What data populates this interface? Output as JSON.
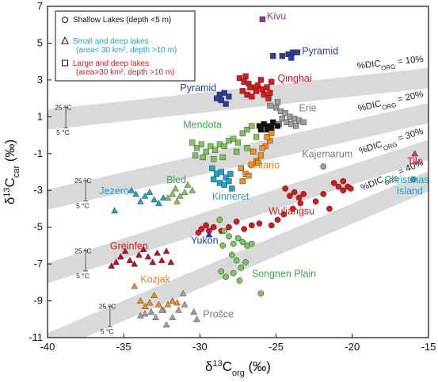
{
  "chart_data": {
    "type": "scatter",
    "xlabel": "δ13Corg (‰)",
    "ylabel": "δ13Ccar (‰)",
    "xlim": [
      -40,
      -15
    ],
    "ylim": [
      -11,
      7
    ],
    "x_ticks": [
      "-40",
      "-35",
      "-30",
      "-25",
      "-20",
      "-15"
    ],
    "y_ticks": [
      "7",
      "5",
      "3",
      "1",
      "-1",
      "-3",
      "-5",
      "-7",
      "-9",
      "-11"
    ],
    "legend": [
      {
        "shape": "circle",
        "text": "Shallow Lakes (depth <5 m)",
        "color": "#111111"
      },
      {
        "shape": "triangle",
        "text": "Small and deep lakes",
        "text2": "(area< 30 km², depth >10 m)",
        "color": "#1fa3c8"
      },
      {
        "shape": "square",
        "text": "Large and deep lakes",
        "text2": "(area>30 km², depth >10 m)",
        "color": "#d7191c"
      }
    ],
    "bands": [
      {
        "label": "%DIC",
        "sub": "ORG",
        "tail": " = 10%",
        "y_at_x_min": 0.85,
        "y_at_x_max": 3.1
      },
      {
        "label": "%DIC",
        "sub": "ORG",
        "tail": " = 20%",
        "y_at_x_min": -3.5,
        "y_at_x_max": 1.2
      },
      {
        "label": "%DIC",
        "sub": "ORG",
        "tail": " = 30%",
        "y_at_x_min": -7.5,
        "y_at_x_max": -0.8
      },
      {
        "label": "%DIC",
        "sub": "ORG",
        "tail": " = 40%",
        "y_at_x_min": -11.3,
        "y_at_x_max": -2.5
      }
    ],
    "temp_labels": {
      "warm": "25 °C",
      "cold": "5 °C"
    },
    "series": [
      {
        "name": "Kivu",
        "shape": "square",
        "color": "#8e3c97",
        "points": [
          [
            -25.9,
            6.3
          ]
        ]
      },
      {
        "name": "Pyramid",
        "shape": "square",
        "color": "#2a3d9c",
        "points": [
          [
            -24.6,
            4.3
          ],
          [
            -24.2,
            4.4
          ],
          [
            -23.9,
            4.5
          ],
          [
            -23.6,
            4.5
          ],
          [
            -24.0,
            4.2
          ],
          [
            -25.2,
            4.3
          ]
        ]
      },
      {
        "name": "Qinghai",
        "shape": "square",
        "color": "#d7191c",
        "points": [
          [
            -27.4,
            3.1
          ],
          [
            -27.1,
            2.9
          ],
          [
            -26.8,
            2.8
          ],
          [
            -26.5,
            2.6
          ],
          [
            -26.2,
            2.7
          ],
          [
            -25.9,
            2.5
          ],
          [
            -25.6,
            2.6
          ],
          [
            -25.3,
            2.9
          ],
          [
            -27.2,
            2.4
          ],
          [
            -26.9,
            2.2
          ],
          [
            -26.6,
            2.1
          ],
          [
            -26.3,
            2.4
          ],
          [
            -25.8,
            2.2
          ],
          [
            -25.5,
            2.0
          ],
          [
            -27.0,
            3.2
          ],
          [
            -26.0,
            3.0
          ],
          [
            -25.4,
            2.3
          ],
          [
            -26.7,
            2.6
          ]
        ]
      },
      {
        "name": "Pyramid",
        "shape": "square",
        "color": "#2a3d9c",
        "points": [
          [
            -28.7,
            2.2
          ],
          [
            -28.4,
            2.3
          ],
          [
            -28.1,
            2.1
          ],
          [
            -28.6,
            1.9
          ],
          [
            -28.3,
            1.7
          ],
          [
            -28.9,
            2.0
          ]
        ]
      },
      {
        "name": "Erie",
        "shape": "square",
        "color": "#9e9e9e",
        "points": [
          [
            -25.4,
            1.6
          ],
          [
            -25.0,
            1.5
          ],
          [
            -24.7,
            1.3
          ],
          [
            -24.4,
            1.2
          ],
          [
            -24.1,
            1.0
          ],
          [
            -23.8,
            0.9
          ],
          [
            -23.5,
            0.8
          ],
          [
            -23.2,
            0.7
          ],
          [
            -24.9,
            1.8
          ],
          [
            -24.6,
            0.9
          ],
          [
            -24.3,
            0.7
          ],
          [
            -24.0,
            0.6
          ],
          [
            -23.7,
            0.5
          ],
          [
            -24.8,
            0.6
          ]
        ]
      },
      {
        "name": "",
        "shape": "square",
        "color": "#111111",
        "points": [
          [
            -26.1,
            0.5
          ],
          [
            -25.8,
            0.6
          ],
          [
            -25.5,
            0.5
          ],
          [
            -25.2,
            0.7
          ],
          [
            -24.9,
            0.5
          ],
          [
            -26.0,
            0.3
          ],
          [
            -25.6,
            0.3
          ],
          [
            -25.3,
            0.4
          ]
        ]
      },
      {
        "name": "Mendota",
        "shape": "square",
        "color": "#7fc45a",
        "points": [
          [
            -30.5,
            -0.4
          ],
          [
            -30.2,
            -0.7
          ],
          [
            -29.9,
            -0.5
          ],
          [
            -29.6,
            -0.9
          ],
          [
            -29.3,
            -0.6
          ],
          [
            -29.0,
            -0.8
          ],
          [
            -28.7,
            -0.5
          ],
          [
            -28.4,
            -0.6
          ],
          [
            -28.1,
            -0.3
          ],
          [
            -27.8,
            -0.2
          ],
          [
            -27.5,
            -0.4
          ],
          [
            -27.2,
            0.1
          ],
          [
            -26.9,
            0.3
          ],
          [
            -26.6,
            0.5
          ],
          [
            -26.3,
            -0.1
          ],
          [
            -30.3,
            -1.1
          ],
          [
            -29.8,
            -1.2
          ],
          [
            -29.1,
            -1.3
          ],
          [
            -28.5,
            -1.2
          ],
          [
            -27.6,
            -0.9
          ],
          [
            -26.9,
            -0.7
          ]
        ]
      },
      {
        "name": "Ontario",
        "shape": "square",
        "color": "#f28e1c",
        "points": [
          [
            -27.3,
            -1.8
          ],
          [
            -27.0,
            -2.1
          ],
          [
            -26.6,
            -1.6
          ],
          [
            -26.3,
            -1.4
          ],
          [
            -26.0,
            -1.1
          ],
          [
            -25.7,
            -0.6
          ],
          [
            -25.4,
            -0.3
          ],
          [
            -25.9,
            -0.7
          ],
          [
            -26.5,
            -0.9
          ],
          [
            -27.2,
            -2.5
          ],
          [
            -26.8,
            -2.2
          ],
          [
            -25.6,
            -0.1
          ],
          [
            -25.3,
            0.1
          ],
          [
            -26.2,
            -1.5
          ]
        ]
      },
      {
        "name": "Kinneret",
        "shape": "square",
        "color": "#1fa3c8",
        "points": [
          [
            -29.2,
            -1.8
          ],
          [
            -28.9,
            -2.1
          ],
          [
            -28.6,
            -2.0
          ],
          [
            -28.3,
            -2.3
          ],
          [
            -28.0,
            -2.1
          ],
          [
            -29.1,
            -2.4
          ],
          [
            -28.7,
            -2.6
          ],
          [
            -28.4,
            -2.7
          ],
          [
            -28.1,
            -2.5
          ],
          [
            -27.9,
            -2.9
          ]
        ]
      },
      {
        "name": "Jezero",
        "shape": "triangle",
        "color": "#1fa3c8",
        "points": [
          [
            -35.6,
            -4.1
          ],
          [
            -34.5,
            -3.0
          ],
          [
            -34.2,
            -3.2
          ],
          [
            -33.9,
            -3.6
          ],
          [
            -33.6,
            -3.3
          ],
          [
            -33.3,
            -3.1
          ],
          [
            -33.0,
            -3.5
          ],
          [
            -32.7,
            -3.7
          ],
          [
            -32.4,
            -3.4
          ]
        ]
      },
      {
        "name": "Bled",
        "shape": "triangle",
        "color": "#7fc45a",
        "points": [
          [
            -32.1,
            -3.4
          ],
          [
            -31.8,
            -3.2
          ],
          [
            -31.6,
            -2.9
          ],
          [
            -31.3,
            -3.3
          ],
          [
            -31.0,
            -3.1
          ],
          [
            -30.8,
            -2.7
          ],
          [
            -30.5,
            -3.0
          ],
          [
            -31.5,
            -3.6
          ]
        ]
      },
      {
        "name": "Kajemarum",
        "shape": "circle",
        "color": "#9e9e9e",
        "points": [
          [
            -21.9,
            -1.7
          ]
        ]
      },
      {
        "name": "Wuliangsu",
        "shape": "circle",
        "color": "#d7191c",
        "points": [
          [
            -24.4,
            -2.9
          ],
          [
            -24.1,
            -3.3
          ],
          [
            -23.8,
            -3.1
          ],
          [
            -23.5,
            -3.4
          ],
          [
            -23.2,
            -3.2
          ],
          [
            -23.4,
            -3.7
          ],
          [
            -23.9,
            -4.0
          ],
          [
            -24.5,
            -4.3
          ],
          [
            -24.9,
            -4.6
          ],
          [
            -25.3,
            -4.9
          ],
          [
            -22.4,
            -3.6
          ],
          [
            -21.9,
            -3.2
          ],
          [
            -21.5,
            -4.0
          ],
          [
            -21.2,
            -2.6
          ],
          [
            -20.9,
            -2.8
          ],
          [
            -20.6,
            -2.5
          ],
          [
            -20.3,
            -2.8
          ],
          [
            -20.6,
            -3.0
          ],
          [
            -20.1,
            -2.9
          ],
          [
            -26.1,
            -4.8
          ],
          [
            -26.6,
            -4.9
          ],
          [
            -27.1,
            -5.1
          ],
          [
            -28.1,
            -5.0
          ],
          [
            -28.6,
            -5.2
          ],
          [
            -29.1,
            -5.0
          ],
          [
            -29.6,
            -4.9
          ],
          [
            -30.1,
            -5.3
          ],
          [
            -29.9,
            -5.1
          ],
          [
            -29.4,
            -5.2
          ],
          [
            -27.6,
            -4.7
          ]
        ]
      },
      {
        "name": "Tilo",
        "shape": "triangle",
        "color": "#d23c7a",
        "points": [
          [
            -15.9,
            -1.0
          ]
        ]
      },
      {
        "name": "Christmas Island",
        "shape": "circle",
        "color": "#1fa3c8",
        "points": [
          [
            -16.0,
            -2.4
          ]
        ]
      },
      {
        "name": "Yukon",
        "shape": "triangle",
        "color": "#2a3d9c",
        "points": [
          [
            -29.4,
            -5.4
          ]
        ]
      },
      {
        "name": "Songnen Plain",
        "shape": "circle",
        "color": "#7fc45a",
        "points": [
          [
            -28.7,
            -4.6
          ],
          [
            -28.4,
            -5.2
          ],
          [
            -28.1,
            -5.5
          ],
          [
            -27.8,
            -5.9
          ],
          [
            -27.5,
            -5.6
          ],
          [
            -27.2,
            -5.8
          ],
          [
            -26.9,
            -6.0
          ],
          [
            -26.6,
            -5.9
          ],
          [
            -28.5,
            -6.0
          ],
          [
            -27.9,
            -6.5
          ],
          [
            -27.6,
            -6.8
          ],
          [
            -27.3,
            -7.2
          ],
          [
            -27.0,
            -6.9
          ],
          [
            -28.6,
            -7.4
          ],
          [
            -28.3,
            -7.7
          ],
          [
            -27.8,
            -7.5
          ],
          [
            -27.4,
            -7.9
          ],
          [
            -26.0,
            -8.6
          ]
        ]
      },
      {
        "name": "Greinfen",
        "shape": "triangle",
        "color": "#c1121b",
        "points": [
          [
            -35.8,
            -7.1
          ],
          [
            -35.5,
            -6.9
          ],
          [
            -35.2,
            -6.6
          ],
          [
            -34.9,
            -6.3
          ],
          [
            -34.6,
            -6.8
          ],
          [
            -34.3,
            -7.0
          ],
          [
            -34.0,
            -6.5
          ],
          [
            -33.7,
            -6.2
          ],
          [
            -33.4,
            -6.6
          ],
          [
            -33.1,
            -6.9
          ],
          [
            -32.8,
            -6.4
          ],
          [
            -32.5,
            -6.8
          ],
          [
            -32.2,
            -6.3
          ],
          [
            -31.9,
            -6.9
          ]
        ]
      },
      {
        "name": "Kozjak",
        "shape": "triangle",
        "color": "#f28e1c",
        "points": [
          [
            -34.3,
            -8.2
          ],
          [
            -33.9,
            -9.0
          ],
          [
            -33.6,
            -9.3
          ],
          [
            -33.3,
            -9.1
          ],
          [
            -33.0,
            -8.7
          ],
          [
            -32.7,
            -9.2
          ],
          [
            -32.4,
            -9.5
          ],
          [
            -32.1,
            -9.2
          ],
          [
            -31.8,
            -9.0
          ],
          [
            -31.5,
            -9.1
          ]
        ]
      },
      {
        "name": "Prošce",
        "shape": "triangle",
        "color": "#9e9e9e",
        "points": [
          [
            -33.9,
            -9.8
          ],
          [
            -33.6,
            -9.7
          ],
          [
            -33.2,
            -9.6
          ],
          [
            -32.9,
            -9.9
          ],
          [
            -32.5,
            -9.5
          ],
          [
            -32.2,
            -10.3
          ],
          [
            -31.8,
            -9.9
          ],
          [
            -31.4,
            -9.5
          ],
          [
            -31.1,
            -8.6
          ],
          [
            -31.0,
            -9.2
          ],
          [
            -30.4,
            -9.6
          ],
          [
            -30.2,
            -10.0
          ]
        ]
      }
    ],
    "labels": [
      {
        "text": "Kivu",
        "color": "#8e3c97",
        "x": -25.6,
        "y": 6.3
      },
      {
        "text": "Pyramid",
        "color": "#2a3d9c",
        "x": -23.3,
        "y": 4.4
      },
      {
        "text": "Qinghai",
        "color": "#d7191c",
        "x": -24.9,
        "y": 2.9
      },
      {
        "text": "Pyramid",
        "color": "#2a3d9c",
        "x": -31.3,
        "y": 2.4
      },
      {
        "text": "Erie",
        "color": "#7b7b7b",
        "x": -23.5,
        "y": 1.3
      },
      {
        "text": "Mendota",
        "color": "#3aa64a",
        "x": -31.1,
        "y": 0.4
      },
      {
        "text": "Ontario",
        "color": "#e67e1a",
        "x": -26.9,
        "y": -1.8
      },
      {
        "text": "Kajemarum",
        "color": "#7b7b7b",
        "x": -23.3,
        "y": -1.2
      },
      {
        "text": "Tilo",
        "color": "#d7191c",
        "x": -16.4,
        "y": -1.6
      },
      {
        "text": "Bled",
        "color": "#3aa64a",
        "x": -32.2,
        "y": -2.6
      },
      {
        "text": "Christmas",
        "color": "#1fa3c8",
        "x": -17.9,
        "y": -2.6
      },
      {
        "text": "Island",
        "color": "#1fa3c8",
        "x": -17.1,
        "y": -3.2
      },
      {
        "text": "Jezero",
        "color": "#1fa3c8",
        "x": -36.6,
        "y": -3.2
      },
      {
        "text": "Kinneret",
        "color": "#1fa3c8",
        "x": -29.2,
        "y": -3.5
      },
      {
        "text": "Wuliangsu",
        "color": "#d7191c",
        "x": -25.5,
        "y": -4.3
      },
      {
        "text": "Yukon",
        "color": "#2a3d9c",
        "x": -30.6,
        "y": -5.9
      },
      {
        "text": "Greinfen",
        "color": "#d7191c",
        "x": -35.9,
        "y": -6.2
      },
      {
        "text": "Songnen Plain",
        "color": "#3aa64a",
        "x": -26.6,
        "y": -7.7
      },
      {
        "text": "Kozjak",
        "color": "#e67e1a",
        "x": -33.9,
        "y": -8.0
      },
      {
        "text": "Prošce",
        "color": "#7b7b7b",
        "x": -29.8,
        "y": -9.9
      }
    ]
  }
}
